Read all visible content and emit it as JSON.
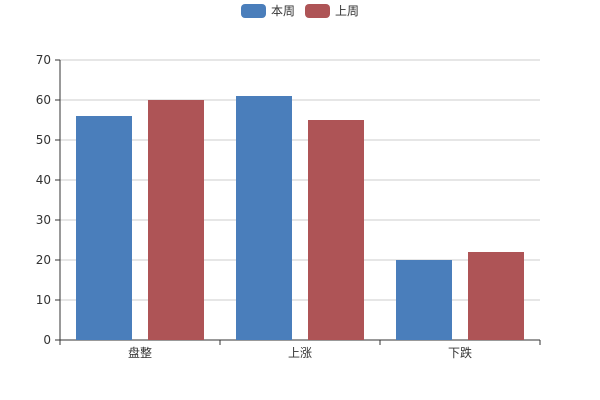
{
  "legend": [
    {
      "label": "本周",
      "color": "#4a7ebb"
    },
    {
      "label": "上周",
      "color": "#ae5456"
    }
  ],
  "chart_data": {
    "type": "bar",
    "categories": [
      "盘整",
      "上涨",
      "下跌"
    ],
    "series": [
      {
        "name": "本周",
        "values": [
          56,
          61,
          20
        ],
        "color": "#4a7ebb"
      },
      {
        "name": "上周",
        "values": [
          60,
          55,
          22
        ],
        "color": "#ae5456"
      }
    ],
    "ylim": [
      0,
      70
    ],
    "yticks": [
      0,
      10,
      20,
      30,
      40,
      50,
      60,
      70
    ],
    "grid": true,
    "legend_position": "top-center",
    "title": "",
    "xlabel": "",
    "ylabel": ""
  }
}
